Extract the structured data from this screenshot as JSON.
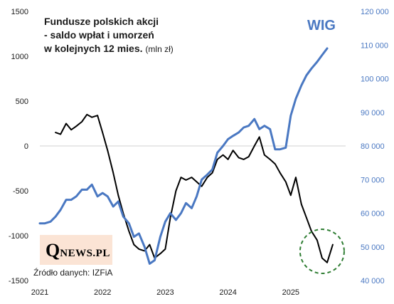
{
  "chart_data": {
    "type": "line",
    "title_lines": [
      "Fundusze polskich akcji",
      "- saldo wpłat i umorzeń",
      "w kolejnych 12 mies."
    ],
    "title_unit": "(mln zł)",
    "x_ticks": [
      "2021",
      "2022",
      "2023",
      "2024",
      "2025"
    ],
    "y_left": {
      "min": -1500,
      "max": 1500,
      "ticks": [
        "1500",
        "1000",
        "500",
        "0",
        "-500",
        "-1000",
        "-1500"
      ]
    },
    "y_right": {
      "min": 40000,
      "max": 120000,
      "ticks": [
        "120 000",
        "110 000",
        "100 000",
        "90 000",
        "80 000",
        "70 000",
        "60 000",
        "50 000",
        "40 000"
      ]
    },
    "series": [
      {
        "axis": "left",
        "color": "#000000",
        "points": [
          [
            2021.25,
            150
          ],
          [
            2021.33,
            130
          ],
          [
            2021.42,
            250
          ],
          [
            2021.5,
            180
          ],
          [
            2021.58,
            220
          ],
          [
            2021.67,
            270
          ],
          [
            2021.75,
            350
          ],
          [
            2021.83,
            320
          ],
          [
            2021.92,
            340
          ],
          [
            2022.0,
            150
          ],
          [
            2022.08,
            -50
          ],
          [
            2022.17,
            -300
          ],
          [
            2022.25,
            -550
          ],
          [
            2022.33,
            -750
          ],
          [
            2022.42,
            -950
          ],
          [
            2022.5,
            -1100
          ],
          [
            2022.58,
            -1150
          ],
          [
            2022.67,
            -1170
          ],
          [
            2022.75,
            -1100
          ],
          [
            2022.83,
            -1250
          ],
          [
            2022.92,
            -1200
          ],
          [
            2023.0,
            -1150
          ],
          [
            2023.08,
            -800
          ],
          [
            2023.17,
            -500
          ],
          [
            2023.25,
            -350
          ],
          [
            2023.33,
            -380
          ],
          [
            2023.42,
            -350
          ],
          [
            2023.5,
            -400
          ],
          [
            2023.58,
            -450
          ],
          [
            2023.67,
            -350
          ],
          [
            2023.75,
            -300
          ],
          [
            2023.83,
            -150
          ],
          [
            2023.92,
            -100
          ],
          [
            2024.0,
            -150
          ],
          [
            2024.08,
            -50
          ],
          [
            2024.17,
            -130
          ],
          [
            2024.25,
            -150
          ],
          [
            2024.33,
            -120
          ],
          [
            2024.42,
            0
          ],
          [
            2024.5,
            100
          ],
          [
            2024.58,
            -100
          ],
          [
            2024.67,
            -150
          ],
          [
            2024.75,
            -200
          ],
          [
            2024.83,
            -300
          ],
          [
            2024.92,
            -400
          ],
          [
            2025.0,
            -550
          ],
          [
            2025.08,
            -350
          ],
          [
            2025.17,
            -650
          ],
          [
            2025.25,
            -800
          ],
          [
            2025.33,
            -950
          ],
          [
            2025.42,
            -1050
          ],
          [
            2025.5,
            -1250
          ],
          [
            2025.58,
            -1300
          ],
          [
            2025.67,
            -1100
          ]
        ]
      },
      {
        "name": "WIG",
        "axis": "right",
        "color": "#4a78c2",
        "points": [
          [
            2021.0,
            57000
          ],
          [
            2021.08,
            57000
          ],
          [
            2021.17,
            57500
          ],
          [
            2021.25,
            59000
          ],
          [
            2021.33,
            61000
          ],
          [
            2021.42,
            64000
          ],
          [
            2021.5,
            64000
          ],
          [
            2021.58,
            65000
          ],
          [
            2021.67,
            67000
          ],
          [
            2021.75,
            67000
          ],
          [
            2021.83,
            68500
          ],
          [
            2021.92,
            65000
          ],
          [
            2022.0,
            66000
          ],
          [
            2022.08,
            65000
          ],
          [
            2022.17,
            62000
          ],
          [
            2022.25,
            63500
          ],
          [
            2022.33,
            59000
          ],
          [
            2022.42,
            57000
          ],
          [
            2022.5,
            53000
          ],
          [
            2022.58,
            54000
          ],
          [
            2022.67,
            50000
          ],
          [
            2022.75,
            45000
          ],
          [
            2022.83,
            46000
          ],
          [
            2022.92,
            53000
          ],
          [
            2023.0,
            57500
          ],
          [
            2023.08,
            60000
          ],
          [
            2023.17,
            58000
          ],
          [
            2023.25,
            60000
          ],
          [
            2023.33,
            63000
          ],
          [
            2023.42,
            61500
          ],
          [
            2023.5,
            65000
          ],
          [
            2023.58,
            70000
          ],
          [
            2023.67,
            71500
          ],
          [
            2023.75,
            73000
          ],
          [
            2023.83,
            78000
          ],
          [
            2023.92,
            80000
          ],
          [
            2024.0,
            82000
          ],
          [
            2024.08,
            83000
          ],
          [
            2024.17,
            84000
          ],
          [
            2024.25,
            85500
          ],
          [
            2024.33,
            86000
          ],
          [
            2024.42,
            88000
          ],
          [
            2024.5,
            85000
          ],
          [
            2024.58,
            86000
          ],
          [
            2024.67,
            85000
          ],
          [
            2024.75,
            79000
          ],
          [
            2024.83,
            79000
          ],
          [
            2024.92,
            79500
          ],
          [
            2025.0,
            89000
          ],
          [
            2025.08,
            94000
          ],
          [
            2025.17,
            98000
          ],
          [
            2025.25,
            101000
          ],
          [
            2025.33,
            103000
          ],
          [
            2025.42,
            105000
          ],
          [
            2025.5,
            107000
          ],
          [
            2025.58,
            109000
          ]
        ]
      }
    ],
    "annotation": {
      "type": "dashed-circle",
      "color": "#2e7d32",
      "x": 2025.5,
      "y": -1175
    }
  },
  "wig_label": "WIG",
  "logo": {
    "q": "Q",
    "rest": "NEWS.PL"
  },
  "source": "Źródło danych: IZFiA"
}
